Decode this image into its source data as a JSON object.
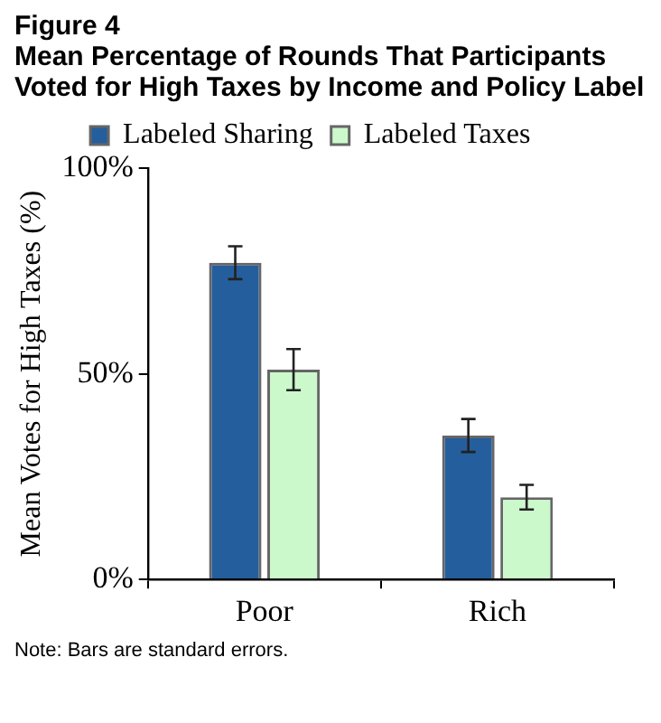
{
  "chart_data": {
    "type": "bar",
    "title": "Figure 4",
    "subtitle": "Mean Percentage of Rounds That Participants Voted for High Taxes by Income and Policy Label",
    "ylabel": "Mean Votes for High Taxes (%)",
    "annotations": [
      "Note: Bars are standard errors."
    ],
    "categories": [
      "Poor",
      "Rich"
    ],
    "series": [
      {
        "name": "Labeled Sharing",
        "color": "#255e9c",
        "values": [
          77,
          35
        ],
        "errors": [
          4,
          4
        ]
      },
      {
        "name": "Labeled Taxes",
        "color": "#ccf9cc",
        "values": [
          51,
          20
        ],
        "errors": [
          5,
          3
        ]
      }
    ],
    "ylim": [
      0,
      100
    ],
    "yticks": [
      {
        "value": 0,
        "label": "0%"
      },
      {
        "value": 50,
        "label": "50%"
      },
      {
        "value": 100,
        "label": "100%"
      }
    ],
    "grid": false,
    "legend": "top"
  }
}
